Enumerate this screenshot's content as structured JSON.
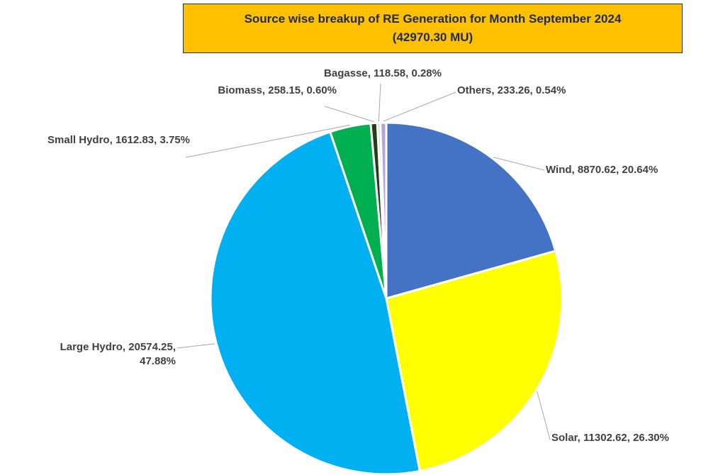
{
  "chart_data": {
    "type": "pie",
    "title": "Source wise breakup of RE Generation for Month September 2024\n(42970.30 MU)",
    "categories": [
      "Wind",
      "Solar",
      "Large Hydro",
      "Small Hydro",
      "Biomass",
      "Bagasse",
      "Others"
    ],
    "values": [
      8870.62,
      11302.62,
      20574.25,
      1612.83,
      258.15,
      118.58,
      233.26
    ],
    "value_labels": [
      "Wind, 8870.62, 20.64%",
      "Solar, 11302.62, 26.30%",
      "Large Hydro, 20574.25, 47.88%",
      "Small Hydro, 1612.83, 3.75%",
      "Biomass, 258.15, 0.60%",
      "Bagasse, 118.58, 0.28%",
      "Others, 233.26, 0.54%"
    ],
    "colors": [
      "#4472c4",
      "#ffff00",
      "#00b0f0",
      "#00b050",
      "#243d16",
      "#d0d0d0",
      "#b4a7d6"
    ]
  }
}
